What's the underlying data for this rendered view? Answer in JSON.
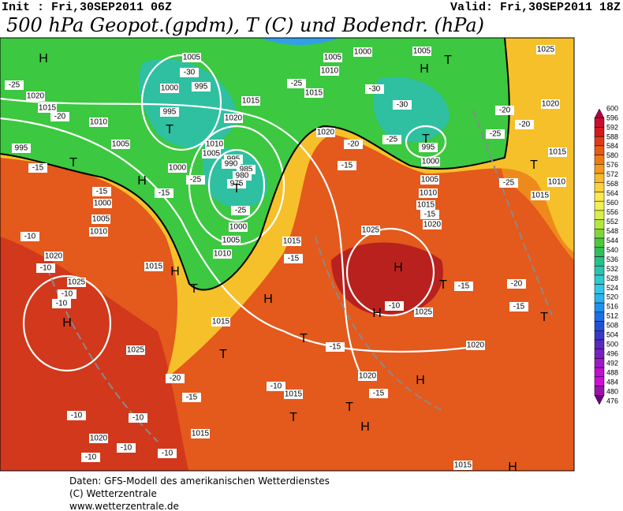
{
  "header": {
    "init": "Init : Fri,30SEP2011 06Z",
    "valid": "Valid: Fri,30SEP2011 18Z",
    "title": "500 hPa Geopot.(gpdm), T (C) und Bodendr. (hPa)"
  },
  "colorbar": {
    "levels": [
      600,
      596,
      592,
      588,
      584,
      580,
      576,
      572,
      568,
      564,
      560,
      556,
      552,
      548,
      544,
      540,
      536,
      532,
      528,
      524,
      520,
      516,
      512,
      508,
      504,
      500,
      496,
      492,
      488,
      484,
      480,
      476
    ],
    "colors": [
      "#b4004b",
      "#c8102e",
      "#d7191c",
      "#e03a1a",
      "#e85a14",
      "#ef7a12",
      "#f59a1a",
      "#f9b928",
      "#fcd23a",
      "#fde84a",
      "#f0f052",
      "#d9ee48",
      "#b4e63c",
      "#7ed63a",
      "#4cc83c",
      "#2ebe5a",
      "#28c08a",
      "#2ac4b0",
      "#2ecad0",
      "#30c8e8",
      "#2ab4f0",
      "#2090f0",
      "#1a70e8",
      "#2050d8",
      "#3838c8",
      "#5a28c0",
      "#7a20c0",
      "#a018c8",
      "#c010d0",
      "#d00cd8",
      "#a010b0",
      "#700080"
    ]
  },
  "map_labels": [
    "H",
    "1020",
    "1015",
    "1010",
    "995",
    "T",
    "1005",
    "H",
    "1000",
    "1000",
    "1005",
    "1010",
    "1020",
    "1015",
    "H",
    "T",
    "1025",
    "H",
    "1025",
    "1020",
    "T",
    "1015",
    "H",
    "1015",
    "1000",
    "1005",
    "1010",
    "1005",
    "995",
    "1000",
    "995",
    "T",
    "1015",
    "1020",
    "1010",
    "1005",
    "995",
    "990",
    "985",
    "980",
    "975",
    "T",
    "1005",
    "1010",
    "1015",
    "1000",
    "1020",
    "1005",
    "H",
    "T",
    "995",
    "T",
    "1000",
    "1005",
    "1010",
    "1015",
    "1020",
    "1025",
    "H",
    "T",
    "H",
    "1025",
    "1020",
    "1015",
    "1010",
    "1015",
    "T",
    "T",
    "1020",
    "1025",
    "T",
    "T",
    "T",
    "H",
    "H",
    "1020",
    "1015",
    "1015",
    "1015",
    "H",
    "-25",
    "-20",
    "-15",
    "-10",
    "-10",
    "-10",
    "-10",
    "-15",
    "-15",
    "-25",
    "-25",
    "-25",
    "-30",
    "-30",
    "-30",
    "-25",
    "-20",
    "-15",
    "-15",
    "-15",
    "-20",
    "-15",
    "-25",
    "-20",
    "-25",
    "-15",
    "-10",
    "-15",
    "-20",
    "-15",
    "-10",
    "-15",
    "-10",
    "-10",
    "-10",
    "-10",
    "-10",
    "-20"
  ],
  "footer": [
    "Daten: GFS-Modell des amerikanischen Wetterdienstes",
    "(C) Wetterzentrale",
    "www.wetterzentrale.de"
  ]
}
